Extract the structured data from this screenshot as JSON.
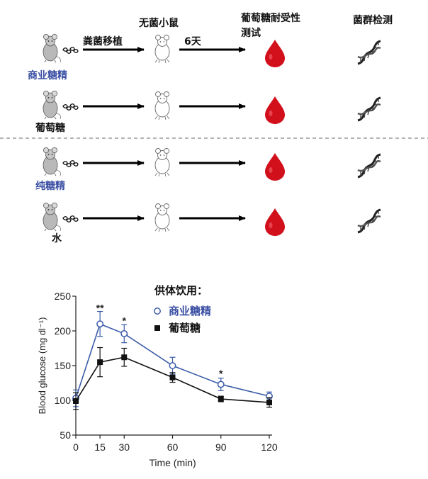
{
  "diagram": {
    "header": {
      "fecal_transplant": "粪菌移植",
      "germ_free_mice": "无菌小鼠",
      "days": "6天",
      "glucose_tolerance_test_line1": "葡萄糖耐受性",
      "glucose_tolerance_test_line2": "测试",
      "microbiome_analysis": "菌群检测"
    },
    "groups": [
      {
        "label": "商业糖精",
        "label_color": "#3b4fa3"
      },
      {
        "label": "葡萄糖",
        "label_color": "#111111"
      },
      {
        "label": "纯糖精",
        "label_color": "#3b4fa3"
      },
      {
        "label": "水",
        "label_color": "#111111"
      }
    ],
    "colors": {
      "blood": "#d2101c",
      "divider": "#888888",
      "arrow": "#000000"
    }
  },
  "chart_data": {
    "type": "line",
    "legend_title": "供体饮用：",
    "xlabel": "Time (min)",
    "ylabel": "Blood glucose (mg dl⁻¹)",
    "xlim": [
      0,
      120
    ],
    "ylim": [
      50,
      250
    ],
    "xticks": [
      0,
      15,
      30,
      60,
      90,
      120
    ],
    "yticks": [
      50,
      100,
      150,
      200,
      250
    ],
    "grid": false,
    "legend_position": "top-right",
    "x": [
      0,
      15,
      30,
      60,
      90,
      120
    ],
    "series": [
      {
        "name": "商业糖精",
        "color": "#3b5ca8",
        "marker": "open-circle",
        "values": [
          103,
          210,
          196,
          150,
          123,
          106
        ],
        "errors": [
          12,
          18,
          13,
          12,
          9,
          6
        ]
      },
      {
        "name": "葡萄糖",
        "color": "#111111",
        "marker": "filled-square",
        "values": [
          99,
          155,
          162,
          133,
          102,
          97
        ],
        "errors": [
          12,
          21,
          13,
          7,
          4,
          7
        ]
      }
    ],
    "annotations": [
      {
        "x": 15,
        "y": 234,
        "text": "**"
      },
      {
        "x": 30,
        "y": 216,
        "text": "*"
      },
      {
        "x": 90,
        "y": 140,
        "text": "*"
      }
    ]
  }
}
